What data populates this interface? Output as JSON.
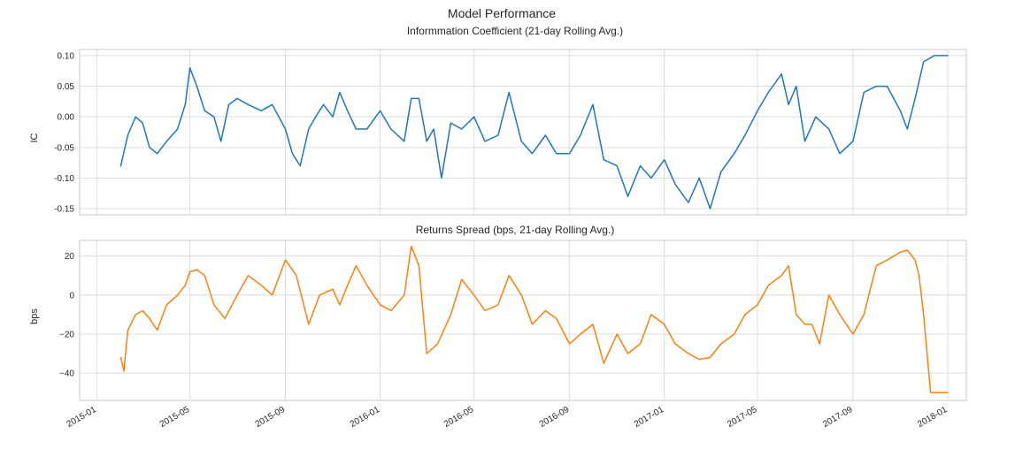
{
  "figure": {
    "title": "Model Performance"
  },
  "chart_data": [
    {
      "type": "line",
      "title": "Informmation Coefficient (21-day Rolling Avg.)",
      "xlabel": "",
      "ylabel": "IC",
      "xlim": [
        "2014-12-10",
        "2018-01-25"
      ],
      "ylim": [
        -0.16,
        0.11
      ],
      "grid": true,
      "yticks": [
        0.1,
        0.05,
        0.0,
        -0.05,
        -0.1,
        -0.15
      ],
      "ytick_labels": [
        "0.10",
        "0.05",
        "0.00",
        "-0.05",
        "-0.10",
        "-0.15"
      ],
      "xticks": [
        "2015-01-01",
        "2015-05-01",
        "2015-09-01",
        "2016-01-01",
        "2016-05-01",
        "2016-09-01",
        "2017-01-01",
        "2017-05-01",
        "2017-09-01",
        "2018-01-01"
      ],
      "xtick_labels": [],
      "series": [
        {
          "color": "#1f77b4",
          "x": [
            "2015-02-01",
            "2015-02-10",
            "2015-02-20",
            "2015-03-01",
            "2015-03-10",
            "2015-03-20",
            "2015-04-01",
            "2015-04-15",
            "2015-04-25",
            "2015-05-01",
            "2015-05-10",
            "2015-05-20",
            "2015-06-01",
            "2015-06-10",
            "2015-06-20",
            "2015-07-01",
            "2015-07-15",
            "2015-08-01",
            "2015-08-15",
            "2015-09-01",
            "2015-09-10",
            "2015-09-20",
            "2015-10-01",
            "2015-10-10",
            "2015-10-20",
            "2015-11-01",
            "2015-11-10",
            "2015-11-20",
            "2015-12-01",
            "2015-12-15",
            "2016-01-01",
            "2016-01-15",
            "2016-02-01",
            "2016-02-10",
            "2016-02-20",
            "2016-03-01",
            "2016-03-10",
            "2016-03-20",
            "2016-04-01",
            "2016-04-15",
            "2016-05-01",
            "2016-05-15",
            "2016-06-01",
            "2016-06-15",
            "2016-07-01",
            "2016-07-15",
            "2016-08-01",
            "2016-08-15",
            "2016-09-01",
            "2016-09-15",
            "2016-10-01",
            "2016-10-15",
            "2016-11-01",
            "2016-11-15",
            "2016-12-01",
            "2016-12-15",
            "2017-01-01",
            "2017-01-15",
            "2017-02-01",
            "2017-02-15",
            "2017-03-01",
            "2017-03-15",
            "2017-04-01",
            "2017-04-15",
            "2017-05-01",
            "2017-05-15",
            "2017-06-01",
            "2017-06-10",
            "2017-06-20",
            "2017-07-01",
            "2017-07-15",
            "2017-08-01",
            "2017-08-15",
            "2017-09-01",
            "2017-09-15",
            "2017-10-01",
            "2017-10-15",
            "2017-11-01",
            "2017-11-10",
            "2017-11-20",
            "2017-12-01",
            "2017-12-15",
            "2018-01-01"
          ],
          "values": [
            -0.08,
            -0.03,
            0.0,
            -0.01,
            -0.05,
            -0.06,
            -0.04,
            -0.02,
            0.02,
            0.08,
            0.05,
            0.01,
            0.0,
            -0.04,
            0.02,
            0.03,
            0.02,
            0.01,
            0.02,
            -0.02,
            -0.06,
            -0.08,
            -0.02,
            0.0,
            0.02,
            0.0,
            0.04,
            0.01,
            -0.02,
            -0.02,
            0.01,
            -0.02,
            -0.04,
            0.03,
            0.03,
            -0.04,
            -0.02,
            -0.1,
            -0.01,
            -0.02,
            0.0,
            -0.04,
            -0.03,
            0.04,
            -0.04,
            -0.06,
            -0.03,
            -0.06,
            -0.06,
            -0.03,
            0.02,
            -0.07,
            -0.08,
            -0.13,
            -0.08,
            -0.1,
            -0.07,
            -0.11,
            -0.14,
            -0.1,
            -0.15,
            -0.09,
            -0.06,
            -0.03,
            0.01,
            0.04,
            0.07,
            0.02,
            0.05,
            -0.04,
            0.0,
            -0.02,
            -0.06,
            -0.04,
            0.04,
            0.05,
            0.05,
            0.01,
            -0.02,
            0.03,
            0.09,
            0.1,
            0.1
          ]
        }
      ]
    },
    {
      "type": "line",
      "title": "Returns Spread (bps, 21-day Rolling Avg.)",
      "xlabel": "",
      "ylabel": "bps",
      "xlim": [
        "2014-12-10",
        "2018-01-25"
      ],
      "ylim": [
        -54,
        28
      ],
      "grid": true,
      "yticks": [
        20,
        0,
        -20,
        -40
      ],
      "ytick_labels": [
        "20",
        "0",
        "−20",
        "−40"
      ],
      "xticks": [
        "2015-01-01",
        "2015-05-01",
        "2015-09-01",
        "2016-01-01",
        "2016-05-01",
        "2016-09-01",
        "2017-01-01",
        "2017-05-01",
        "2017-09-01",
        "2018-01-01"
      ],
      "xtick_labels": [
        "2015-01",
        "2015-05",
        "2015-09",
        "2016-01",
        "2016-05",
        "2016-09",
        "2017-01",
        "2017-05",
        "2017-09",
        "2018-01"
      ],
      "series": [
        {
          "color": "#ff7f0e",
          "x": [
            "2015-02-01",
            "2015-02-05",
            "2015-02-10",
            "2015-02-20",
            "2015-03-01",
            "2015-03-10",
            "2015-03-20",
            "2015-04-01",
            "2015-04-15",
            "2015-04-25",
            "2015-05-01",
            "2015-05-10",
            "2015-05-20",
            "2015-06-01",
            "2015-06-15",
            "2015-07-01",
            "2015-07-15",
            "2015-08-01",
            "2015-08-15",
            "2015-09-01",
            "2015-09-15",
            "2015-10-01",
            "2015-10-15",
            "2015-11-01",
            "2015-11-10",
            "2015-11-20",
            "2015-12-01",
            "2015-12-15",
            "2016-01-01",
            "2016-01-15",
            "2016-02-01",
            "2016-02-10",
            "2016-02-20",
            "2016-03-01",
            "2016-03-15",
            "2016-04-01",
            "2016-04-15",
            "2016-05-01",
            "2016-05-15",
            "2016-06-01",
            "2016-06-15",
            "2016-07-01",
            "2016-07-15",
            "2016-08-01",
            "2016-08-15",
            "2016-09-01",
            "2016-09-15",
            "2016-10-01",
            "2016-10-15",
            "2016-11-01",
            "2016-11-15",
            "2016-12-01",
            "2016-12-15",
            "2017-01-01",
            "2017-01-15",
            "2017-02-01",
            "2017-02-15",
            "2017-03-01",
            "2017-03-15",
            "2017-04-01",
            "2017-04-15",
            "2017-05-01",
            "2017-05-15",
            "2017-06-01",
            "2017-06-10",
            "2017-06-20",
            "2017-07-01",
            "2017-07-10",
            "2017-07-20",
            "2017-08-01",
            "2017-08-15",
            "2017-09-01",
            "2017-09-15",
            "2017-10-01",
            "2017-10-15",
            "2017-11-01",
            "2017-11-10",
            "2017-11-20",
            "2017-11-25",
            "2017-12-01",
            "2017-12-10",
            "2018-01-01"
          ],
          "values": [
            -32,
            -39,
            -18,
            -10,
            -8,
            -12,
            -18,
            -5,
            0,
            5,
            12,
            13,
            10,
            -5,
            -12,
            0,
            10,
            5,
            0,
            18,
            10,
            -15,
            0,
            3,
            -5,
            5,
            15,
            5,
            -5,
            -8,
            0,
            25,
            15,
            -30,
            -25,
            -10,
            8,
            0,
            -8,
            -5,
            10,
            0,
            -15,
            -8,
            -12,
            -25,
            -20,
            -15,
            -35,
            -20,
            -30,
            -25,
            -10,
            -15,
            -25,
            -30,
            -33,
            -32,
            -25,
            -20,
            -10,
            -5,
            5,
            10,
            15,
            -10,
            -15,
            -15,
            -25,
            0,
            -10,
            -20,
            -10,
            15,
            18,
            22,
            23,
            18,
            10,
            -10,
            -50,
            -50
          ]
        }
      ]
    }
  ]
}
